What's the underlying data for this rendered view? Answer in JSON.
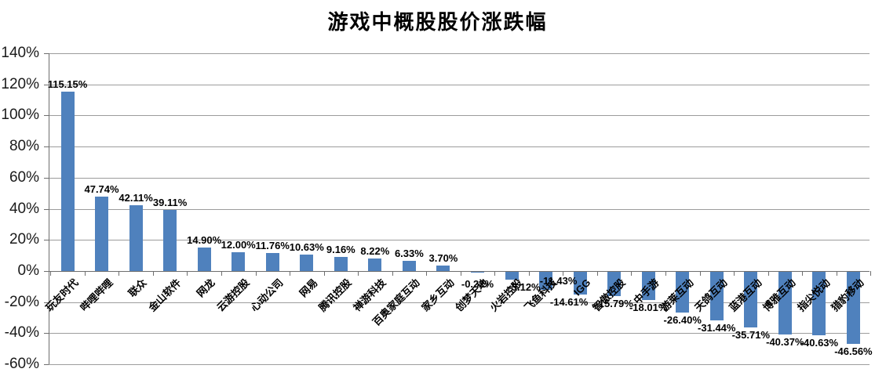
{
  "title": "游戏中概股股价涨跌幅",
  "chart_data": {
    "type": "bar",
    "title": "游戏中概股股价涨跌幅",
    "xlabel": "",
    "ylabel": "",
    "ylim": [
      -60,
      140
    ],
    "grid": true,
    "legend": "none",
    "bar_color": "#4f81bd",
    "gridline_color": "#9c9c9c",
    "axis_color": "#6e6e6e",
    "label_color": "#000000",
    "y_ticks": [
      {
        "value": 140,
        "label": "140%"
      },
      {
        "value": 120,
        "label": "120%"
      },
      {
        "value": 100,
        "label": "100%"
      },
      {
        "value": 80,
        "label": "80%"
      },
      {
        "value": 60,
        "label": "60%"
      },
      {
        "value": 40,
        "label": "40%"
      },
      {
        "value": 20,
        "label": "20%"
      },
      {
        "value": 0,
        "label": "0%"
      },
      {
        "value": -20,
        "label": "-20%"
      },
      {
        "value": -40,
        "label": "-40%"
      },
      {
        "value": -60,
        "label": "-60%"
      }
    ],
    "points": [
      {
        "name": "玩友时代",
        "value": 115.15,
        "label": "115.15%"
      },
      {
        "name": "哔哩哔哩",
        "value": 47.74,
        "label": "47.74%"
      },
      {
        "name": "联众",
        "value": 42.11,
        "label": "42.11%"
      },
      {
        "name": "金山软件",
        "value": 39.11,
        "label": "39.11%"
      },
      {
        "name": "网龙",
        "value": 14.9,
        "label": "14.90%"
      },
      {
        "name": "云游控股",
        "value": 12.0,
        "label": "12.00%"
      },
      {
        "name": "心动公司",
        "value": 11.76,
        "label": "11.76%"
      },
      {
        "name": "网易",
        "value": 10.63,
        "label": "10.63%"
      },
      {
        "name": "腾讯控股",
        "value": 9.16,
        "label": "9.16%"
      },
      {
        "name": "禅游科技",
        "value": 8.22,
        "label": "8.22%"
      },
      {
        "name": "百奥家庭互动",
        "value": 6.33,
        "label": "6.33%"
      },
      {
        "name": "家乡互动",
        "value": 3.7,
        "label": "3.70%"
      },
      {
        "name": "创梦天地",
        "value": -0.22,
        "label": "-0.22%",
        "label_dy": 5
      },
      {
        "name": "火岩控股",
        "value": -5.12,
        "label": "-5.12%",
        "label_dx": 16
      },
      {
        "name": "飞鱼科技",
        "value": -11.43,
        "label": "-11.43%",
        "label_dx": 16,
        "label_dy": -21
      },
      {
        "name": "IGG",
        "value": -14.61,
        "label": "-14.61%",
        "label_dx": -14
      },
      {
        "name": "智傲控股",
        "value": -15.79,
        "label": "-15.79%"
      },
      {
        "name": "中手游",
        "value": -18.01,
        "label": "-18.01%"
      },
      {
        "name": "游莱互动",
        "value": -26.4,
        "label": "-26.40%"
      },
      {
        "name": "天鸽互动",
        "value": -31.44,
        "label": "-31.44%"
      },
      {
        "name": "蓝港互动",
        "value": -35.71,
        "label": "-35.71%"
      },
      {
        "name": "博雅互动",
        "value": -40.37,
        "label": "-40.37%"
      },
      {
        "name": "指尖悦动",
        "value": -40.63,
        "label": "-40.63%"
      },
      {
        "name": "猎豹移动",
        "value": -46.56,
        "label": "-46.56%"
      }
    ]
  }
}
